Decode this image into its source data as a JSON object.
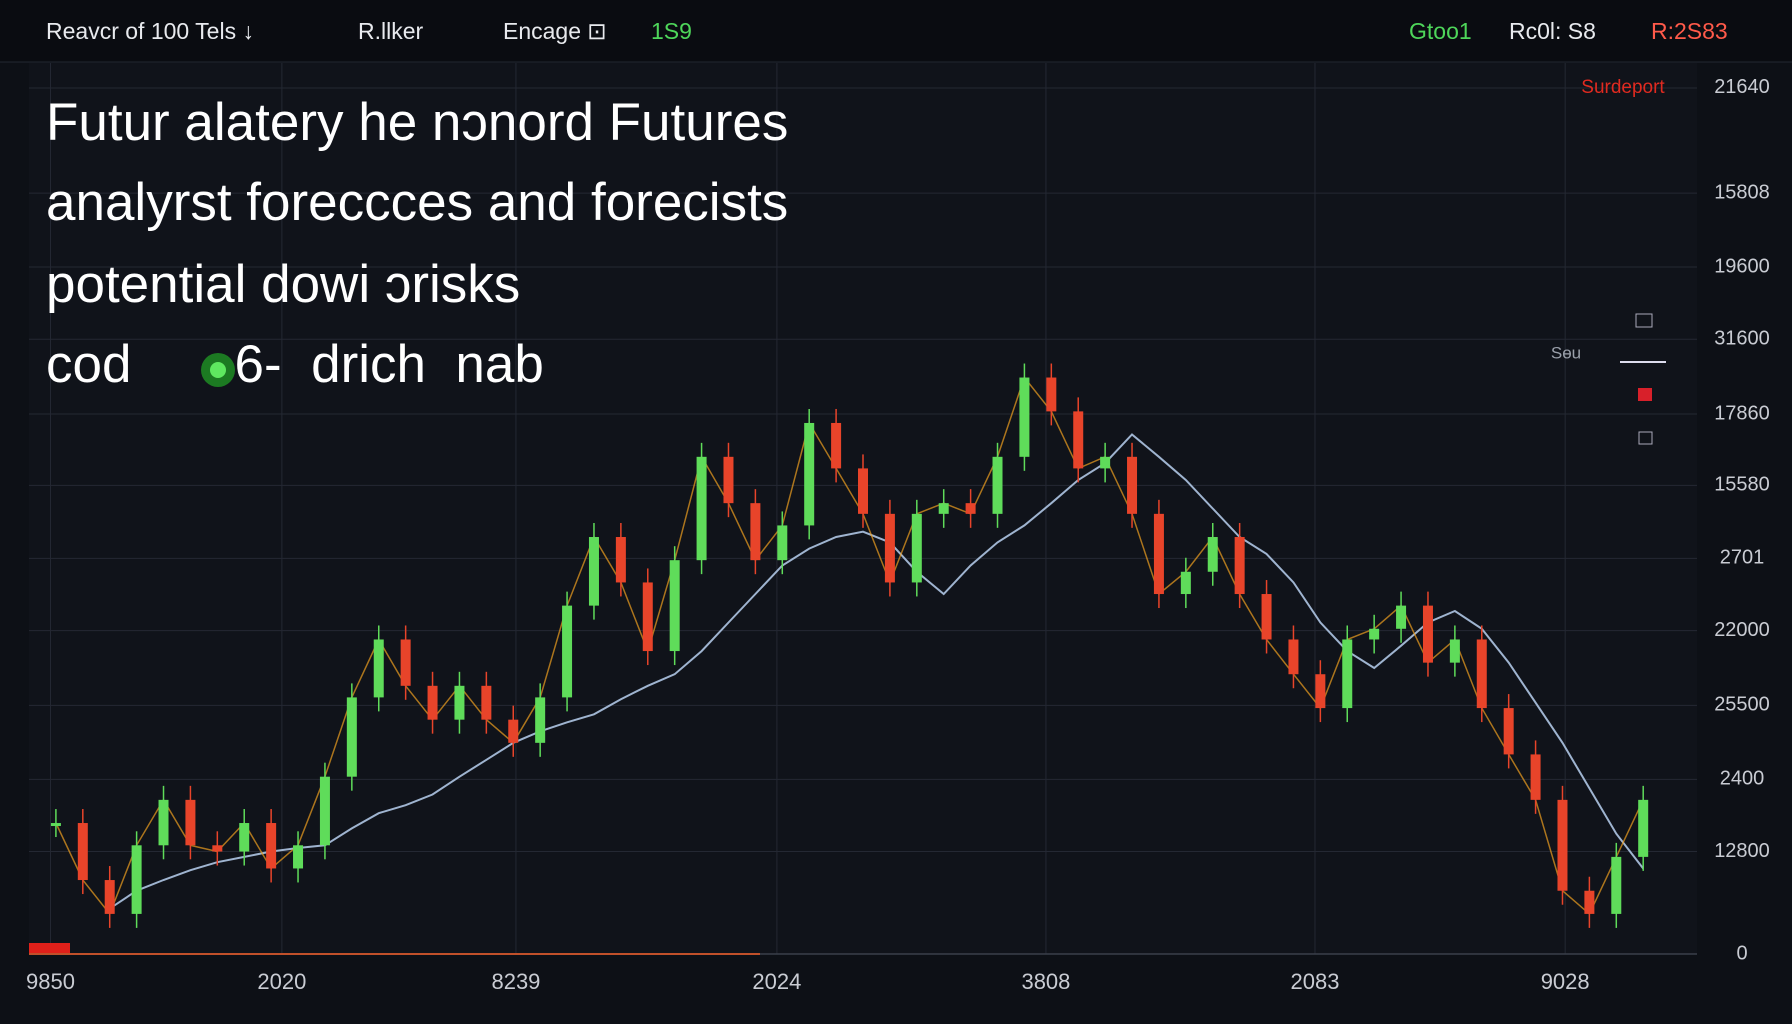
{
  "chart_data": {
    "type": "candlestick",
    "toolbar": {
      "left": [
        "Reavcr of 100  Tels  ↓",
        "R.llker",
        "Encage ⊡"
      ],
      "left_value": "1S9",
      "right": [
        "Gtoo1",
        "Rc0l: S8",
        "R:2S83"
      ]
    },
    "title_lines": [
      "Futur alatery he nɔnord Futures",
      "analyrst foreccces and forecists",
      "potential dowi ɔrisks",
      "cod       6-  drich  nab"
    ],
    "axis_note": "Surdeport",
    "side_label": "Sɵu",
    "ylim": [
      0,
      100
    ],
    "yticks": [
      {
        "value": 97.2,
        "label": "21640"
      },
      {
        "value": 85.4,
        "label": "15808"
      },
      {
        "value": 77.1,
        "label": "19600"
      },
      {
        "value": 69.0,
        "label": "31600"
      },
      {
        "value": 60.6,
        "label": "17860"
      },
      {
        "value": 52.6,
        "label": "15580"
      },
      {
        "value": 44.4,
        "label": "2701"
      },
      {
        "value": 36.3,
        "label": "22000"
      },
      {
        "value": 27.9,
        "label": "25500"
      },
      {
        "value": 19.6,
        "label": "2400"
      },
      {
        "value": 11.5,
        "label": "12800"
      },
      0
    ],
    "xlim": [
      0,
      62
    ],
    "xticks": [
      {
        "value": 0.8,
        "label": "9850"
      },
      {
        "value": 9.4,
        "label": "2020"
      },
      {
        "value": 18.1,
        "label": "8239"
      },
      {
        "value": 27.8,
        "label": "2024"
      },
      {
        "value": 37.8,
        "label": "3808"
      },
      {
        "value": 47.8,
        "label": "2083"
      },
      {
        "value": 57.1,
        "label": "9028"
      }
    ],
    "grid": true,
    "up_color": "#5fdc5a",
    "down_color": "#e8442a",
    "series": [
      {
        "color": "#f0a020",
        "values": [
          14.7,
          8.3,
          4.5,
          12.2,
          17.3,
          12.2,
          11.5,
          14.7,
          9.6,
          12.2,
          19.9,
          28.8,
          35.3,
          30.1,
          26.3,
          30.1,
          26.3,
          23.7,
          28.8,
          39.1,
          46.8,
          41.7,
          34.0,
          44.2,
          55.8,
          50.6,
          44.2,
          48.1,
          59.6,
          54.5,
          49.4,
          41.7,
          49.4,
          50.6,
          49.4,
          55.8,
          64.7,
          60.9,
          54.5,
          55.8,
          49.4,
          40.4,
          42.9,
          46.8,
          40.4,
          35.3,
          31.4,
          27.6,
          35.3,
          36.5,
          39.1,
          32.7,
          35.3,
          27.6,
          22.4,
          17.3,
          7.1,
          4.5,
          10.9,
          17.3
        ]
      },
      {
        "color": "#9fb4d0",
        "values": [
          null,
          null,
          5.1,
          7.1,
          8.3,
          9.4,
          10.3,
          10.9,
          11.5,
          11.9,
          12.2,
          14.1,
          15.8,
          16.7,
          17.9,
          19.9,
          21.8,
          23.7,
          25.0,
          26.0,
          26.9,
          28.6,
          30.1,
          31.4,
          34.0,
          37.2,
          40.4,
          43.6,
          45.5,
          46.8,
          47.4,
          46.2,
          42.9,
          40.4,
          43.6,
          46.2,
          48.1,
          50.6,
          53.2,
          55.1,
          58.3,
          55.8,
          53.2,
          50.0,
          46.8,
          44.9,
          41.7,
          37.2,
          34.0,
          32.1,
          34.6,
          37.2,
          38.5,
          36.5,
          32.7,
          28.2,
          23.7,
          18.6,
          13.5,
          9.6
        ]
      }
    ]
  }
}
